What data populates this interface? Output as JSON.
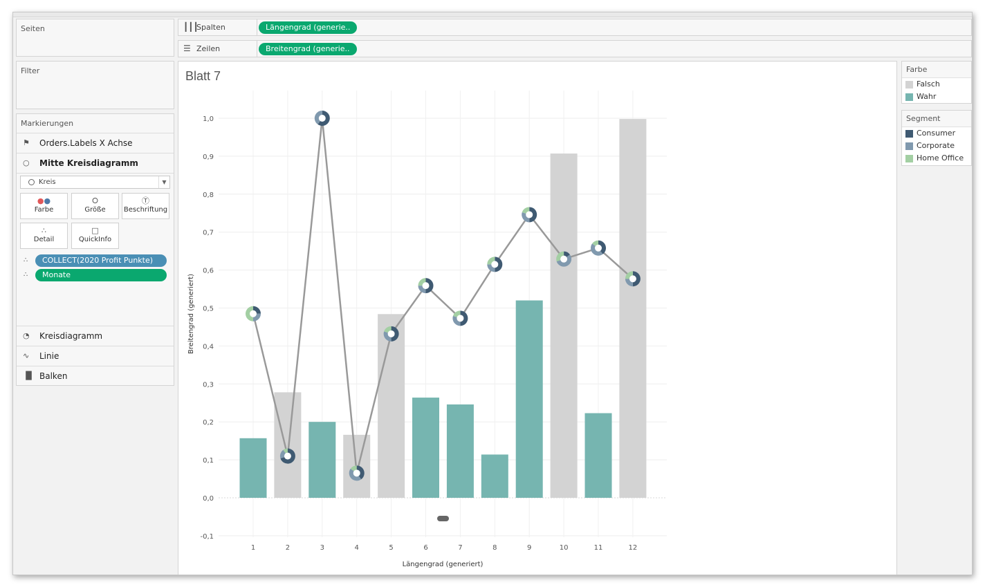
{
  "pages_panel": {
    "title": "Seiten"
  },
  "filter_panel": {
    "title": "Filter"
  },
  "columns_shelf": {
    "label": "Spalten",
    "pill": "Längengrad (generie.."
  },
  "rows_shelf": {
    "label": "Zeilen",
    "pill": "Breitengrad (generie.."
  },
  "marks": {
    "title": "Markierungen",
    "items": [
      {
        "label": "Orders.Labels X Achse",
        "icon": "map-icon"
      },
      {
        "label": "Mitte Kreisdiagramm",
        "icon": "circle-icon"
      }
    ],
    "mark_type": "Kreis",
    "cards": [
      {
        "label": "Farbe",
        "icon": "color-icon"
      },
      {
        "label": "Größe",
        "icon": "size-icon"
      },
      {
        "label": "Beschriftung",
        "icon": "label-icon"
      },
      {
        "label": "Detail",
        "icon": "detail-icon"
      },
      {
        "label": "QuickInfo",
        "icon": "tooltip-icon"
      }
    ],
    "fields": [
      {
        "label": "COLLECT(2020 Profit Punkte)",
        "color": "#4a8fb5"
      },
      {
        "label": "Monate",
        "color": "#0aa86f"
      }
    ],
    "layers": [
      {
        "label": "Kreisdiagramm",
        "icon": "pie-icon"
      },
      {
        "label": "Linie",
        "icon": "line-icon"
      },
      {
        "label": "Balken",
        "icon": "bar-icon"
      }
    ]
  },
  "sheet": {
    "title": "Blatt 7"
  },
  "legend_farbe": {
    "title": "Farbe",
    "items": [
      {
        "label": "Falsch",
        "color": "#d3d3d3"
      },
      {
        "label": "Wahr",
        "color": "#76b5b0"
      }
    ]
  },
  "legend_segment": {
    "title": "Segment",
    "items": [
      {
        "label": "Consumer",
        "color": "#3f5a72"
      },
      {
        "label": "Corporate",
        "color": "#8099ae"
      },
      {
        "label": "Home Office",
        "color": "#a3cfa3"
      }
    ]
  },
  "chart_data": {
    "type": "bar",
    "xlabel": "Längengrad (generiert)",
    "ylabel": "Breitengrad (generiert)",
    "ylim": [
      -0.1,
      1.0
    ],
    "yticks": [
      "-0,1",
      "0,0",
      "0,1",
      "0,2",
      "0,3",
      "0,4",
      "0,5",
      "0,6",
      "0,7",
      "0,8",
      "0,9",
      "1,0"
    ],
    "categories": [
      "1",
      "2",
      "3",
      "4",
      "5",
      "6",
      "7",
      "8",
      "9",
      "10",
      "11",
      "12"
    ],
    "bars": [
      {
        "value": 0.157,
        "group": "Wahr"
      },
      {
        "value": 0.278,
        "group": "Falsch"
      },
      {
        "value": 0.2,
        "group": "Wahr"
      },
      {
        "value": 0.166,
        "group": "Falsch"
      },
      {
        "value": 0.484,
        "group": "Falsch"
      },
      {
        "value": 0.264,
        "group": "Wahr"
      },
      {
        "value": 0.246,
        "group": "Wahr"
      },
      {
        "value": 0.114,
        "group": "Wahr"
      },
      {
        "value": 0.52,
        "group": "Wahr"
      },
      {
        "value": 0.907,
        "group": "Falsch"
      },
      {
        "value": 0.223,
        "group": "Wahr"
      },
      {
        "value": 0.998,
        "group": "Falsch"
      }
    ],
    "line": [
      0.485,
      0.11,
      1.0,
      0.065,
      0.432,
      0.559,
      0.473,
      0.615,
      0.746,
      0.629,
      0.658,
      0.577
    ],
    "pie_segments": [
      [
        0.25,
        0.25,
        0.5
      ],
      [
        0.7,
        0.2,
        0.1
      ],
      [
        0.6,
        0.4,
        0.0
      ],
      [
        0.4,
        0.45,
        0.15
      ],
      [
        0.5,
        0.3,
        0.2
      ],
      [
        0.5,
        0.25,
        0.25
      ],
      [
        0.5,
        0.3,
        0.2
      ],
      [
        0.5,
        0.25,
        0.25
      ],
      [
        0.5,
        0.3,
        0.2
      ],
      [
        0.15,
        0.55,
        0.3
      ],
      [
        0.4,
        0.45,
        0.15
      ],
      [
        0.5,
        0.25,
        0.25
      ]
    ],
    "group_colors": {
      "Falsch": "#d3d3d3",
      "Wahr": "#76b5b0"
    },
    "segment_colors": [
      "#3f5a72",
      "#8099ae",
      "#a3cfa3"
    ],
    "line_color": "#999999",
    "grid": true
  }
}
